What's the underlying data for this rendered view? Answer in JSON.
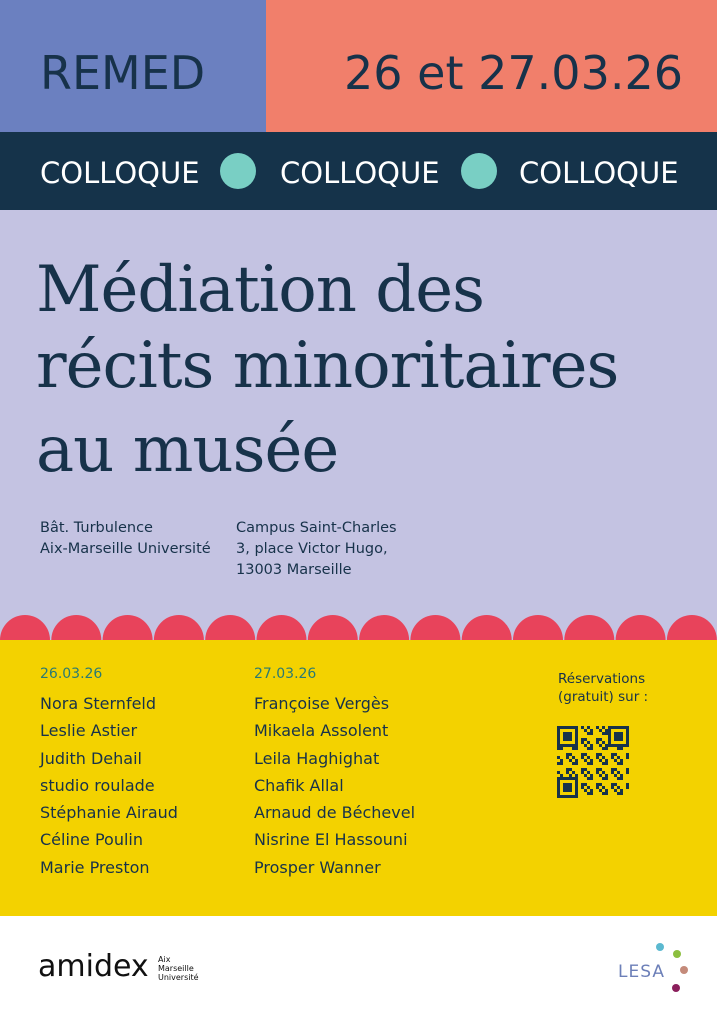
{
  "header": {
    "acronym": "REMED",
    "dates": "26 et 27.03.26"
  },
  "banner": [
    "COLLOQUE",
    "COLLOQUE",
    "COLLOQUE"
  ],
  "title": [
    "Médiation des",
    "récits minoritaires",
    "au musée"
  ],
  "venue": {
    "left": [
      "Bât. Turbulence",
      "Aix-Marseille Université"
    ],
    "right": [
      "Campus Saint-Charles",
      "3, place Victor Hugo,",
      "13003 Marseille"
    ]
  },
  "days": [
    {
      "date": "26.03.26",
      "speakers": [
        "Nora Sternfeld",
        "Leslie Astier",
        "Judith Dehail",
        "studio roulade",
        "Stéphanie Airaud",
        "Céline Poulin",
        "Marie Preston"
      ]
    },
    {
      "date": "27.03.26",
      "speakers": [
        "Françoise Vergès",
        "Mikaela Assolent",
        "Leila Haghighat",
        "Chafik Allal",
        "Arnaud de Béchevel",
        "Nisrine El Hassouni",
        "Prosper Wanner"
      ]
    }
  ],
  "reservation": [
    "Réservations",
    "(gratuit) sur :"
  ],
  "footer": {
    "amidex": "amidex",
    "university": [
      "Aix",
      "Marseille",
      "Université"
    ],
    "lesa": "LESA"
  }
}
